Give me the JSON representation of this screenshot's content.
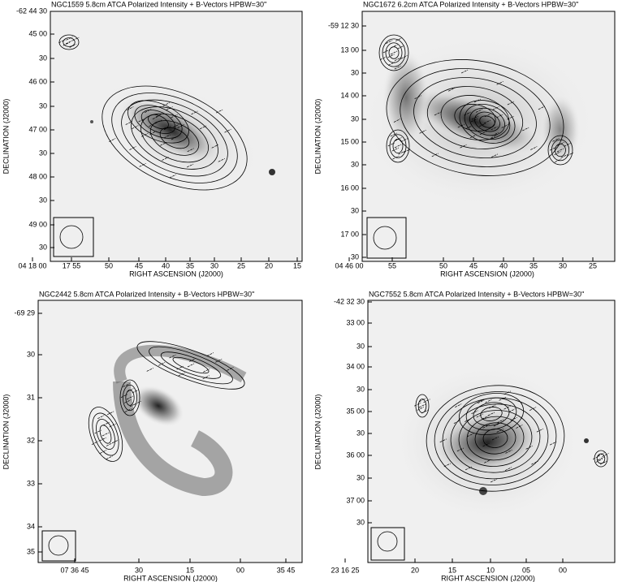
{
  "panels": [
    {
      "title": "NGC1559   5.8cm   ATCA   Polarized Intensity + B-Vectors   HPBW=30''",
      "yticks": [
        "-62 44 30",
        "45 00",
        "30",
        "46 00",
        "30",
        "47 00",
        "30",
        "48 00",
        "30",
        "49 00",
        "30"
      ],
      "xticks": [
        "04 18 00",
        "17 55",
        "50",
        "45",
        "40",
        "35",
        "30",
        "25",
        "20",
        "15"
      ],
      "xlabel": "RIGHT ASCENSION (J2000)",
      "ylabel": "DECLINATION (J2000)"
    },
    {
      "title": "NGC1672   6.2cm   ATCA   Polarized Intensity + B-Vectors   HPBW=30''",
      "yticks": [
        "-59 12 30",
        "13 00",
        "30",
        "14 00",
        "30",
        "15 00",
        "30",
        "16 00",
        "30",
        "17 00",
        "30"
      ],
      "xticks": [
        "04 46 00",
        "55",
        "50",
        "45",
        "40",
        "35",
        "30",
        "25"
      ],
      "xlabel": "RIGHT ASCENSION (J2000)",
      "ylabel": "DECLINATION (J2000)"
    },
    {
      "title": "NGC2442   5.8cm   ATCA   Polarized Intensity + B-Vectors   HPBW=30''",
      "yticks": [
        "-69 29",
        "30",
        "31",
        "32",
        "33",
        "34",
        "35"
      ],
      "xticks": [
        "07 36 45",
        "30",
        "15",
        "00",
        "35 45"
      ],
      "xlabel": "RIGHT ASCENSION (J2000)",
      "ylabel": "DECLINATION (J2000)"
    },
    {
      "title": "NGC7552   5.8cm   ATCA   Polarized Intensity + B-Vectors   HPBW=30''",
      "yticks": [
        "-42 32 30",
        "33 00",
        "30",
        "34 00",
        "30",
        "35 00",
        "30",
        "36 00",
        "30",
        "37 00",
        "30"
      ],
      "xticks": [
        "23 16 25",
        "20",
        "15",
        "10",
        "05",
        "00"
      ],
      "xlabel": "RIGHT ASCENSION (J2000)",
      "ylabel": "DECLINATION (J2000)"
    }
  ]
}
